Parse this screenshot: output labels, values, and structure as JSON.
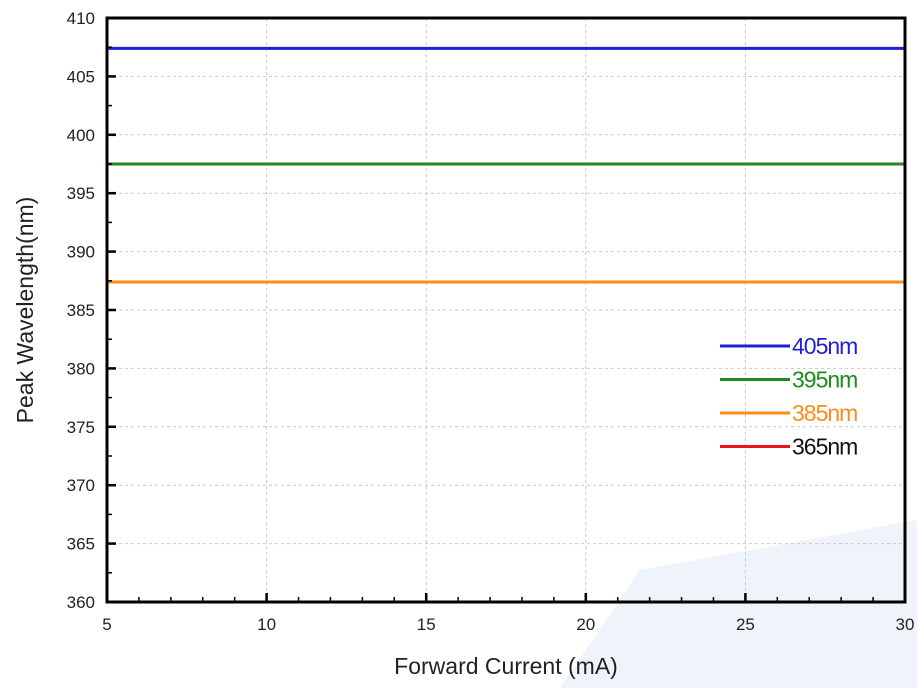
{
  "chart_data": {
    "type": "line",
    "title": "",
    "xlabel": "Forward Current (mA)",
    "ylabel": "Peak Wavelength(nm)",
    "xlim": [
      5,
      30
    ],
    "ylim": [
      360,
      410
    ],
    "x_ticks": [
      5,
      10,
      15,
      20,
      25,
      30
    ],
    "y_ticks": [
      360,
      365,
      370,
      375,
      380,
      385,
      390,
      395,
      400,
      405,
      410
    ],
    "grid": true,
    "legend_position": "right",
    "series": [
      {
        "name": "405nm",
        "color": "#1f1fd6",
        "x": [
          5,
          30
        ],
        "y": [
          407.4,
          407.4
        ]
      },
      {
        "name": "395nm",
        "color": "#1f8a1f",
        "x": [
          5,
          30
        ],
        "y": [
          397.5,
          397.5
        ]
      },
      {
        "name": "385nm",
        "color": "#ff8c1a",
        "x": [
          5,
          30
        ],
        "y": [
          387.4,
          387.4
        ]
      },
      {
        "name": "365nm",
        "color": "#e8141e",
        "x": [],
        "y": []
      }
    ],
    "legend_text_colors": [
      "#1f1fd6",
      "#1f8a1f",
      "#ff8c1a",
      "#111111"
    ],
    "watermark_color": "#e3edf7"
  }
}
